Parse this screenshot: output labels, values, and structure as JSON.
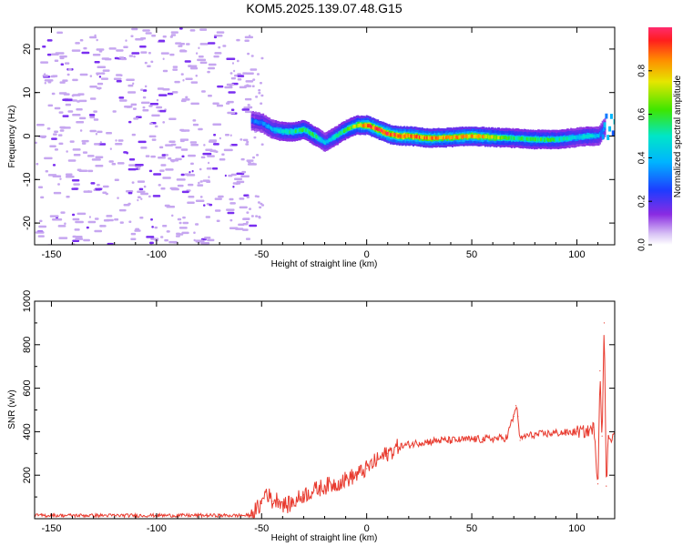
{
  "figure_title": "KOM5.2025.139.07.48.G15",
  "colors": {
    "snr_line": "#e83a2e",
    "noise_speckle": "#c6a6f0",
    "noise_speckle_dark": "#7a2ff0",
    "axis": "#000000"
  },
  "chart_data": [
    {
      "type": "heatmap",
      "title": "",
      "xlabel": "Height of straight line (km)",
      "ylabel": "Frequency (Hz)",
      "xlim": [
        -158,
        118
      ],
      "ylim": [
        -25,
        25
      ],
      "xticks": [
        -150,
        -100,
        -50,
        0,
        50,
        100
      ],
      "yticks": [
        -20,
        -10,
        0,
        10,
        20
      ],
      "grid": false,
      "colorbar": {
        "label": "Normalized spectral amplitude",
        "range": [
          0,
          1
        ],
        "ticks": [
          0.0,
          0.2,
          0.4,
          0.6,
          0.8
        ],
        "colormap": "rainbow (white to violet to blue to cyan to green to yellow to red to magenta)"
      },
      "noise_region_x": [
        -158,
        -55
      ],
      "signal_ridge": {
        "x": [
          -55,
          -50,
          -45,
          -40,
          -35,
          -30,
          -25,
          -20,
          -15,
          -10,
          -5,
          0,
          5,
          10,
          15,
          20,
          30,
          40,
          50,
          60,
          70,
          80,
          90,
          100,
          105,
          110,
          113
        ],
        "frequency": [
          3.5,
          3.0,
          1.5,
          1.0,
          1.0,
          1.5,
          0.0,
          -1.5,
          0.0,
          1.5,
          2.5,
          2.5,
          1.5,
          0.5,
          0.0,
          0.0,
          -0.5,
          -0.3,
          0.0,
          -0.3,
          -0.5,
          -0.8,
          -0.8,
          -0.3,
          0.0,
          0.0,
          2.0
        ],
        "amplitude": [
          0.3,
          0.35,
          0.4,
          0.5,
          0.55,
          0.6,
          0.55,
          0.4,
          0.5,
          0.6,
          0.7,
          0.9,
          0.95,
          0.95,
          0.92,
          0.9,
          0.85,
          0.8,
          0.85,
          0.75,
          0.55,
          0.6,
          0.55,
          0.45,
          0.5,
          0.4,
          0.3
        ]
      }
    },
    {
      "type": "line",
      "title": "",
      "xlabel": "Height of straight line (km)",
      "ylabel": "SNR (v/v)",
      "xlim": [
        -158,
        118
      ],
      "ylim": [
        0,
        1000
      ],
      "xticks": [
        -150,
        -100,
        -50,
        0,
        50,
        100
      ],
      "yticks": [
        200,
        400,
        600,
        800,
        1000
      ],
      "grid": false,
      "series": [
        {
          "name": "",
          "x": [
            -158,
            -150,
            -140,
            -130,
            -120,
            -110,
            -100,
            -90,
            -80,
            -70,
            -60,
            -55,
            -50,
            -48,
            -45,
            -42,
            -40,
            -38,
            -35,
            -30,
            -25,
            -20,
            -15,
            -10,
            -5,
            0,
            5,
            10,
            15,
            20,
            25,
            30,
            35,
            40,
            45,
            50,
            55,
            60,
            65,
            67,
            68,
            70,
            71,
            72,
            73,
            75,
            80,
            85,
            90,
            95,
            100,
            105,
            108,
            110,
            111,
            112,
            113,
            114,
            115,
            118
          ],
          "y": [
            15,
            15,
            15,
            15,
            15,
            15,
            15,
            15,
            15,
            15,
            15,
            15,
            70,
            130,
            80,
            90,
            70,
            60,
            75,
            110,
            130,
            150,
            160,
            180,
            200,
            230,
            270,
            300,
            330,
            340,
            350,
            355,
            360,
            360,
            362,
            365,
            365,
            368,
            370,
            375,
            420,
            470,
            520,
            470,
            360,
            380,
            385,
            390,
            395,
            395,
            400,
            400,
            420,
            160,
            680,
            380,
            900,
            150,
            380,
            380
          ]
        }
      ]
    }
  ]
}
